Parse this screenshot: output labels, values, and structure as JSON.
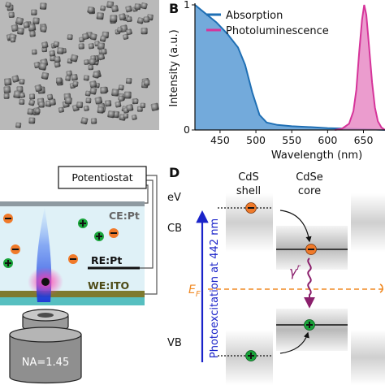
{
  "panel_b": {
    "label": "B",
    "y_axis_label": "Intensity (a.u.)",
    "x_axis_label": "Wavelength (nm)",
    "y_ticks": [
      "0",
      "1"
    ],
    "x_ticks": [
      "450",
      "500",
      "550",
      "600",
      "650"
    ],
    "legend": [
      "Absorption",
      "Photoluminescence"
    ],
    "colors": {
      "absorption": "#1f6fb4",
      "photoluminescence": "#d6349a"
    }
  },
  "panel_c": {
    "potentiostat": "Potentiostat",
    "ce": "CE:Pt",
    "re": "RE:Pt",
    "we": "WE:ITO",
    "na": "NA=1.45"
  },
  "panel_d": {
    "label": "D",
    "ev": "eV",
    "cb": "CB",
    "vb": "VB",
    "ef_main": "E",
    "ef_sub": "F",
    "cds_line1": "CdS",
    "cds_line2": "shell",
    "cdse_line1": "CdSe",
    "cdse_line2": "core",
    "photoexcitation": "Photoexcitation at 442 nm",
    "gamma_main": "γ",
    "gamma_sup": "r"
  },
  "chart_data": {
    "type": "area",
    "x_label": "Wavelength (nm)",
    "y_label": "Intensity (a.u.)",
    "xlim": [
      415,
      680
    ],
    "ylim": [
      0,
      1
    ],
    "x_ticks": [
      450,
      500,
      550,
      600,
      650
    ],
    "y_ticks": [
      0,
      1
    ],
    "legend_position": "top-right",
    "series": [
      {
        "name": "Absorption",
        "color": "#1f6fb4",
        "x": [
          415,
          430,
          445,
          460,
          475,
          485,
          495,
          505,
          515,
          530,
          550,
          570,
          600,
          630,
          660,
          680
        ],
        "y": [
          1.0,
          0.93,
          0.86,
          0.77,
          0.66,
          0.52,
          0.3,
          0.12,
          0.06,
          0.04,
          0.03,
          0.025,
          0.015,
          0.01,
          0.005,
          0.0
        ]
      },
      {
        "name": "Photoluminescence",
        "color": "#d6349a",
        "x": [
          610,
          620,
          630,
          636,
          640,
          644,
          648,
          651,
          654,
          658,
          662,
          666,
          670,
          675,
          680
        ],
        "y": [
          0.0,
          0.01,
          0.05,
          0.15,
          0.32,
          0.62,
          0.88,
          1.0,
          0.92,
          0.65,
          0.38,
          0.18,
          0.07,
          0.02,
          0.0
        ]
      }
    ]
  }
}
